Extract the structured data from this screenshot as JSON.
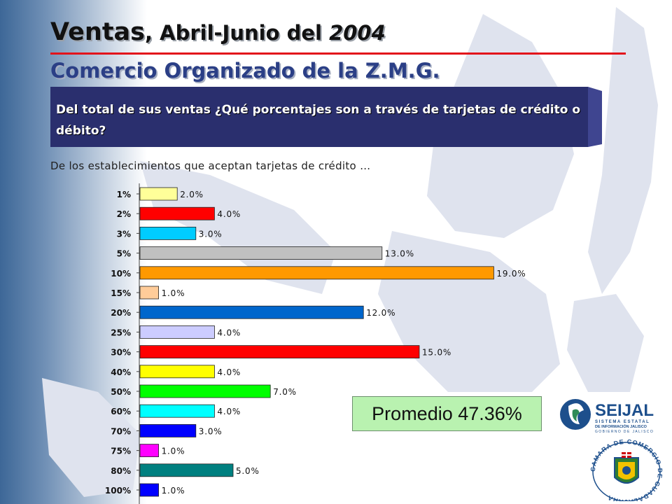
{
  "title": {
    "part1": "Ventas",
    "part2": ", Abril-Junio del ",
    "part3": "2004"
  },
  "subtitle": "Comercio Organizado de la Z.M.G.",
  "question": "Del total de sus ventas ¿Qué porcentajes son a través de tarjetas de crédito o débito?",
  "note": "De los establecimientos que aceptan tarjetas de crédito …",
  "average": "Promedio 47.36%",
  "logos": {
    "seijal_word": "SEIJAL",
    "seijal_line1": "SISTEMA ESTATAL",
    "seijal_line2": "DE INFORMACIÓN JALISCO",
    "seijal_line3": "GOBIERNO DE JALISCO",
    "camara_text": "CAMARA DE COMERCIO DE GUADALAJARA"
  },
  "colors": {
    "title_rule": "#e3131b",
    "subtitle": "#2b3f86",
    "question_box": "#2a2f6e",
    "average_box": "#b9f2b0"
  },
  "chart_data": {
    "type": "bar",
    "orientation": "horizontal",
    "categories": [
      "1%",
      "2%",
      "3%",
      "5%",
      "10%",
      "15%",
      "20%",
      "25%",
      "30%",
      "40%",
      "50%",
      "60%",
      "70%",
      "75%",
      "80%",
      "100%"
    ],
    "values": [
      2.0,
      4.0,
      3.0,
      13.0,
      19.0,
      1.0,
      12.0,
      4.0,
      15.0,
      4.0,
      7.0,
      4.0,
      3.0,
      1.0,
      5.0,
      1.0
    ],
    "data_labels": [
      "2.0%",
      "4.0%",
      "3.0%",
      "13.0%",
      "19.0%",
      "1.0%",
      "12.0%",
      "4.0%",
      "15.0%",
      "4.0%",
      "7.0%",
      "4.0%",
      "3.0%",
      "1.0%",
      "5.0%",
      "1.0%"
    ],
    "colors": [
      "#ffff99",
      "#ff0000",
      "#00ccff",
      "#c0c0c0",
      "#ff9900",
      "#ffcc99",
      "#0066cc",
      "#ccccff",
      "#ff0000",
      "#ffff00",
      "#00ff00",
      "#00ffff",
      "#0000ff",
      "#ff00ff",
      "#008080",
      "#0000ff"
    ],
    "title": "",
    "xlabel": "",
    "ylabel": "",
    "xlim": [
      0,
      20
    ],
    "grid": false,
    "legend": "none"
  }
}
